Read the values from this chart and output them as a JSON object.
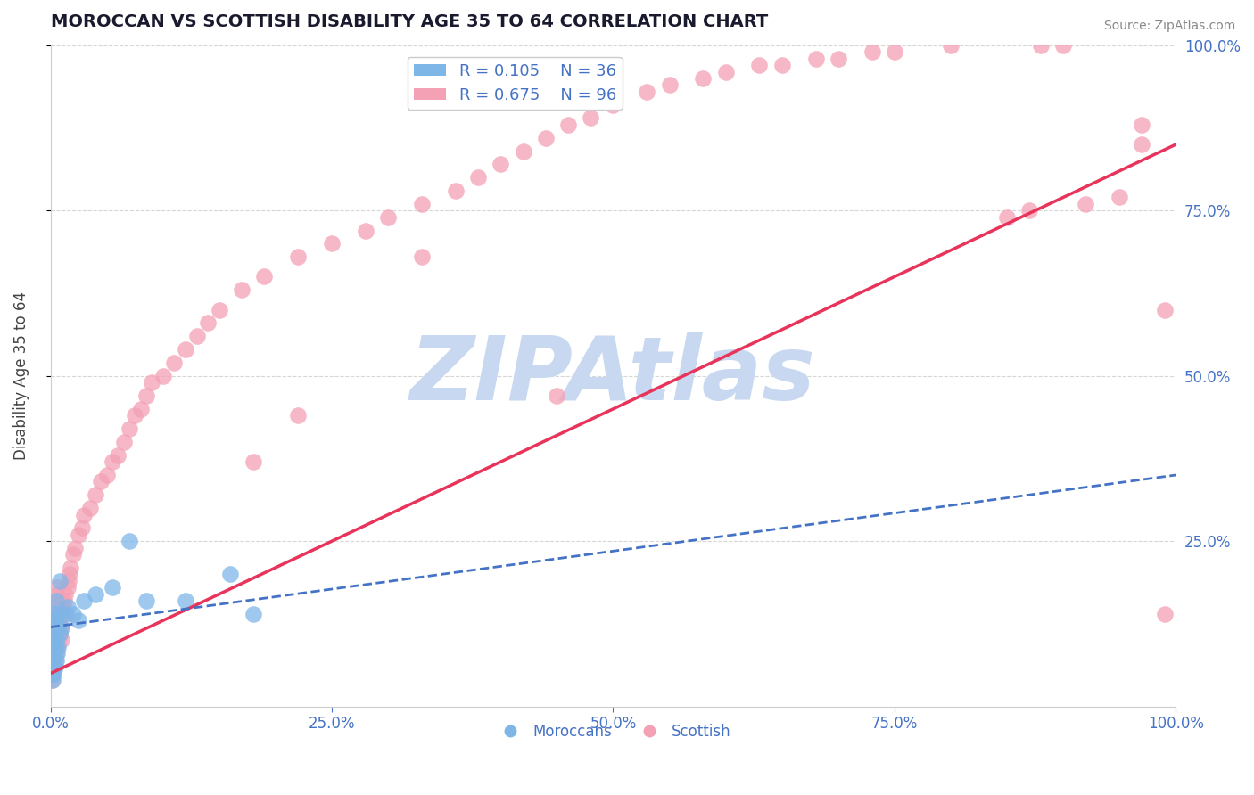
{
  "title": "MOROCCAN VS SCOTTISH DISABILITY AGE 35 TO 64 CORRELATION CHART",
  "source": "Source: ZipAtlas.com",
  "ylabel": "Disability Age 35 to 64",
  "xlabel_moroccan": "Moroccans",
  "xlabel_scottish": "Scottish",
  "xmin": 0.0,
  "xmax": 1.0,
  "ymin": 0.0,
  "ymax": 1.0,
  "moroccan_R": 0.105,
  "moroccan_N": 36,
  "scottish_R": 0.675,
  "scottish_N": 96,
  "moroccan_color": "#7EB6E8",
  "scottish_color": "#F4A0B5",
  "moroccan_line_color": "#4472C4",
  "scottish_line_color": "#E8335A",
  "watermark": "ZIPAtlas",
  "watermark_color": "#C8D8F0",
  "grid_color": "#CCCCCC",
  "title_color": "#1a1a2e",
  "axis_label_color": "#4472C4",
  "moroccan_x": [
    0.001,
    0.001,
    0.001,
    0.002,
    0.002,
    0.002,
    0.002,
    0.003,
    0.003,
    0.003,
    0.003,
    0.004,
    0.004,
    0.004,
    0.005,
    0.005,
    0.005,
    0.006,
    0.006,
    0.007,
    0.007,
    0.008,
    0.008,
    0.01,
    0.012,
    0.015,
    0.02,
    0.025,
    0.03,
    0.04,
    0.055,
    0.07,
    0.085,
    0.12,
    0.16,
    0.18
  ],
  "moroccan_y": [
    0.05,
    0.07,
    0.1,
    0.04,
    0.06,
    0.09,
    0.12,
    0.05,
    0.08,
    0.1,
    0.14,
    0.06,
    0.09,
    0.13,
    0.07,
    0.1,
    0.16,
    0.08,
    0.12,
    0.09,
    0.14,
    0.11,
    0.19,
    0.12,
    0.14,
    0.15,
    0.14,
    0.13,
    0.16,
    0.17,
    0.18,
    0.25,
    0.16,
    0.16,
    0.2,
    0.14
  ],
  "scottish_x": [
    0.001,
    0.001,
    0.002,
    0.002,
    0.002,
    0.003,
    0.003,
    0.003,
    0.004,
    0.004,
    0.004,
    0.005,
    0.005,
    0.005,
    0.006,
    0.006,
    0.006,
    0.007,
    0.007,
    0.008,
    0.008,
    0.009,
    0.009,
    0.01,
    0.01,
    0.011,
    0.012,
    0.013,
    0.014,
    0.015,
    0.016,
    0.017,
    0.018,
    0.02,
    0.022,
    0.025,
    0.028,
    0.03,
    0.035,
    0.04,
    0.045,
    0.05,
    0.055,
    0.06,
    0.065,
    0.07,
    0.075,
    0.08,
    0.085,
    0.09,
    0.1,
    0.11,
    0.12,
    0.13,
    0.14,
    0.15,
    0.17,
    0.19,
    0.22,
    0.25,
    0.28,
    0.3,
    0.33,
    0.36,
    0.38,
    0.4,
    0.42,
    0.44,
    0.46,
    0.48,
    0.5,
    0.53,
    0.55,
    0.58,
    0.6,
    0.63,
    0.65,
    0.68,
    0.7,
    0.73,
    0.75,
    0.8,
    0.85,
    0.87,
    0.88,
    0.9,
    0.92,
    0.95,
    0.97,
    0.97,
    0.99,
    0.99,
    0.45,
    0.33,
    0.22,
    0.18
  ],
  "scottish_y": [
    0.04,
    0.07,
    0.05,
    0.08,
    0.11,
    0.06,
    0.09,
    0.13,
    0.07,
    0.1,
    0.15,
    0.08,
    0.12,
    0.17,
    0.09,
    0.13,
    0.18,
    0.1,
    0.14,
    0.11,
    0.15,
    0.12,
    0.16,
    0.1,
    0.14,
    0.15,
    0.16,
    0.17,
    0.14,
    0.18,
    0.19,
    0.2,
    0.21,
    0.23,
    0.24,
    0.26,
    0.27,
    0.29,
    0.3,
    0.32,
    0.34,
    0.35,
    0.37,
    0.38,
    0.4,
    0.42,
    0.44,
    0.45,
    0.47,
    0.49,
    0.5,
    0.52,
    0.54,
    0.56,
    0.58,
    0.6,
    0.63,
    0.65,
    0.68,
    0.7,
    0.72,
    0.74,
    0.76,
    0.78,
    0.8,
    0.82,
    0.84,
    0.86,
    0.88,
    0.89,
    0.91,
    0.93,
    0.94,
    0.95,
    0.96,
    0.97,
    0.97,
    0.98,
    0.98,
    0.99,
    0.99,
    1.0,
    0.74,
    0.75,
    1.0,
    1.0,
    0.76,
    0.77,
    0.85,
    0.88,
    0.6,
    0.14,
    0.47,
    0.68,
    0.44,
    0.37
  ],
  "scottish_trendline": [
    [
      0.0,
      0.05
    ],
    [
      1.0,
      0.85
    ]
  ],
  "moroccan_trendline": [
    [
      0.0,
      0.12
    ],
    [
      1.0,
      0.35
    ]
  ],
  "xtick_labels": [
    "0.0%",
    "25.0%",
    "50.0%",
    "75.0%",
    "100.0%"
  ],
  "xtick_values": [
    0.0,
    0.25,
    0.5,
    0.75,
    1.0
  ],
  "ytick_labels_right": [
    "100.0%",
    "75.0%",
    "50.0%",
    "25.0%"
  ],
  "ytick_values": [
    1.0,
    0.75,
    0.5,
    0.25
  ]
}
